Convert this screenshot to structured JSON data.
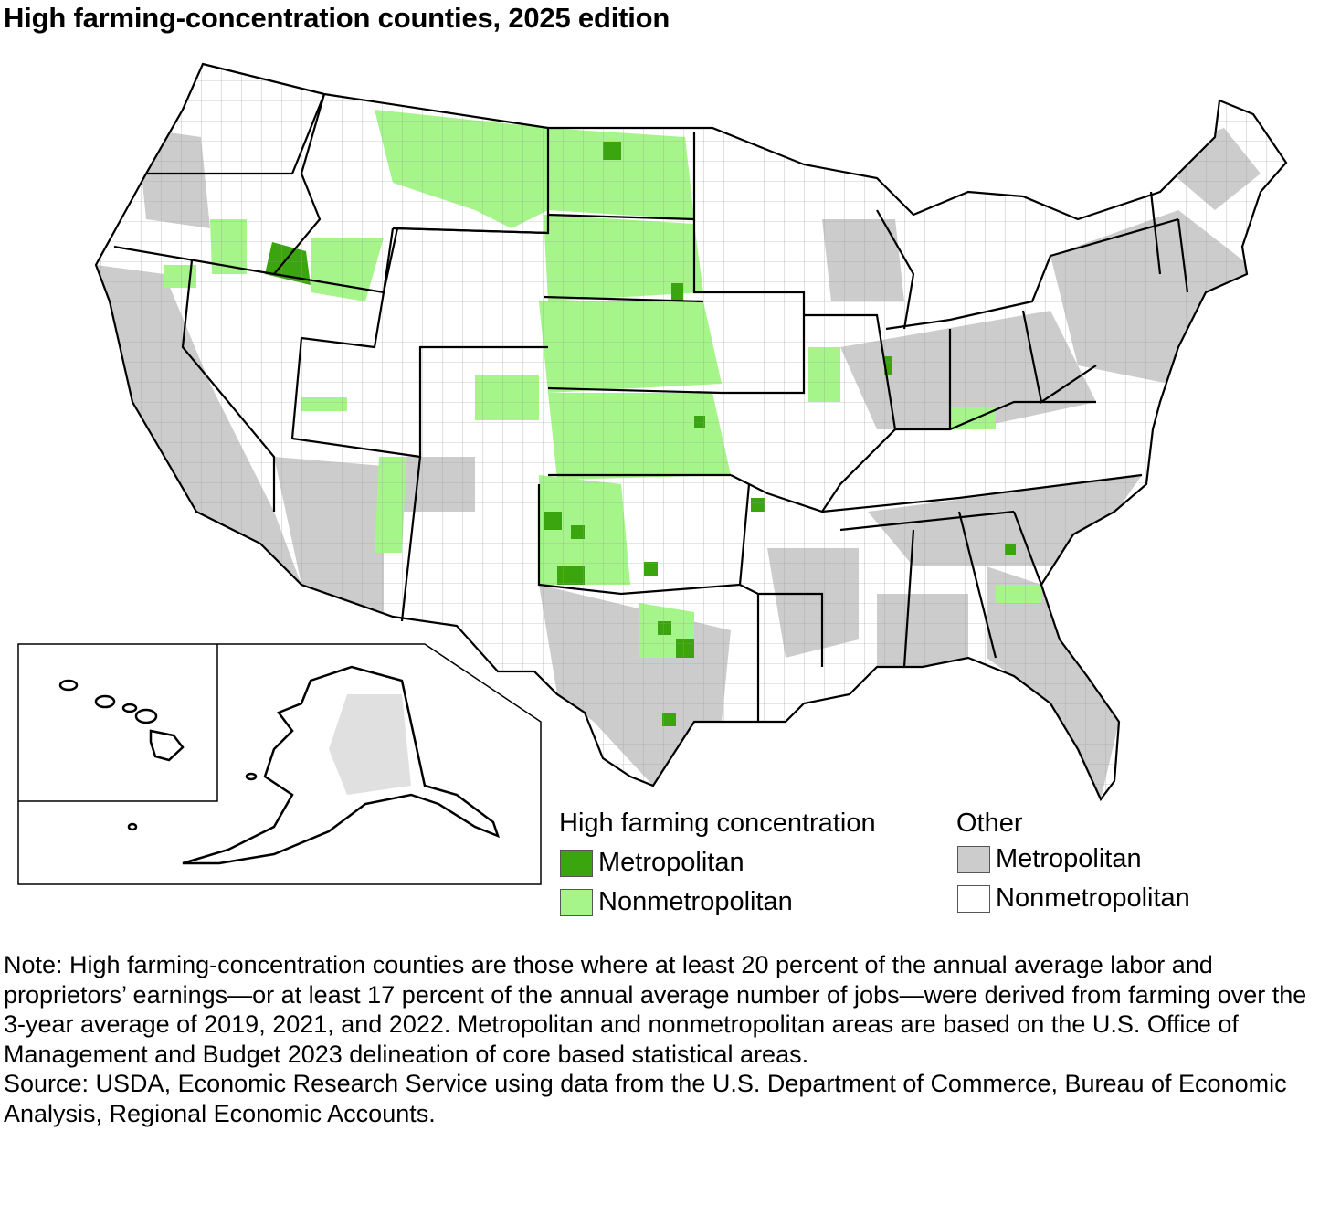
{
  "title": "High farming-concentration counties, 2025 edition",
  "legend": {
    "high_heading": "High farming concentration",
    "other_heading": "Other",
    "items": [
      {
        "group": "High farming concentration",
        "label": "Metropolitan",
        "color": "#3aa50f"
      },
      {
        "group": "High farming concentration",
        "label": "Nonmetropolitan",
        "color": "#a6f58a"
      },
      {
        "group": "Other",
        "label": "Metropolitan",
        "color": "#cccccc"
      },
      {
        "group": "Other",
        "label": "Nonmetropolitan",
        "color": "#ffffff"
      }
    ]
  },
  "note": "Note: High farming-concentration counties are those where at least 20 percent of the annual average labor and proprietors’ earnings—or at least 17 percent of the annual average number of jobs—were derived from farming over the 3-year average of 2019, 2021, and 2022. Metropolitan and nonmetropolitan areas are based on the U.S. Office of Management and Budget 2023 delineation of core based statistical areas.",
  "source": "Source: USDA, Economic Research Service using data from the U.S. Department of Commerce, Bureau of Economic Analysis, Regional Economic Accounts."
}
